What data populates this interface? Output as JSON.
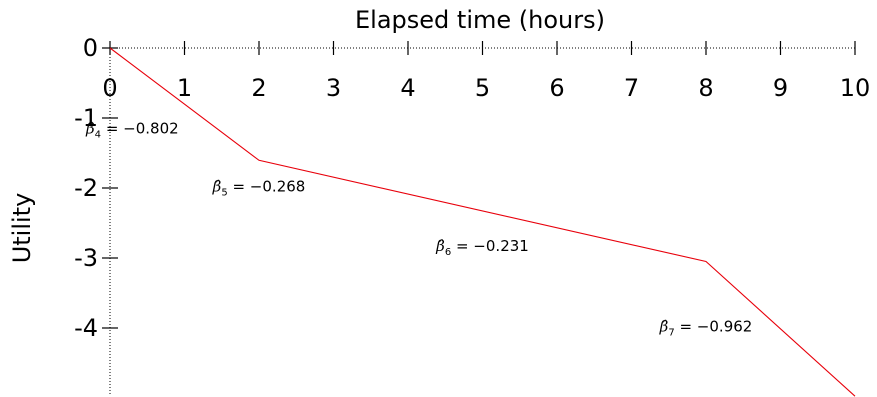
{
  "chart_data": {
    "type": "line",
    "title": "",
    "xlabel": "Elapsed time (hours)",
    "ylabel": "Utility",
    "xlim": [
      0,
      10
    ],
    "ylim": [
      -5,
      0
    ],
    "x_axis_position": "top",
    "grid": false,
    "x_ticks": [
      0,
      1,
      2,
      3,
      4,
      5,
      6,
      7,
      8,
      9,
      10
    ],
    "x_tick_labels": [
      "0",
      "1",
      "2",
      "3",
      "4",
      "5",
      "6",
      "7",
      "8",
      "9",
      "10"
    ],
    "y_ticks": [
      0,
      -1,
      -2,
      -3,
      -4
    ],
    "y_tick_labels": [
      "0",
      "-1",
      "-2",
      "-3",
      "-4"
    ],
    "line_color": "#e8000b",
    "series": [
      {
        "x": [
          0,
          2,
          8,
          10
        ],
        "y": [
          0,
          -1.604,
          -3.05,
          -4.974
        ]
      }
    ],
    "annotations": [
      {
        "beta": "β",
        "sub": "4",
        "text": " = −0.802",
        "x": 0.3,
        "y": -1.22
      },
      {
        "beta": "β",
        "sub": "5",
        "text": " = −0.268",
        "x": 2.0,
        "y": -2.05
      },
      {
        "beta": "β",
        "sub": "6",
        "text": " = −0.231",
        "x": 5.0,
        "y": -2.9
      },
      {
        "beta": "β",
        "sub": "7",
        "text": " = −0.962",
        "x": 8.0,
        "y": -4.05
      }
    ]
  }
}
